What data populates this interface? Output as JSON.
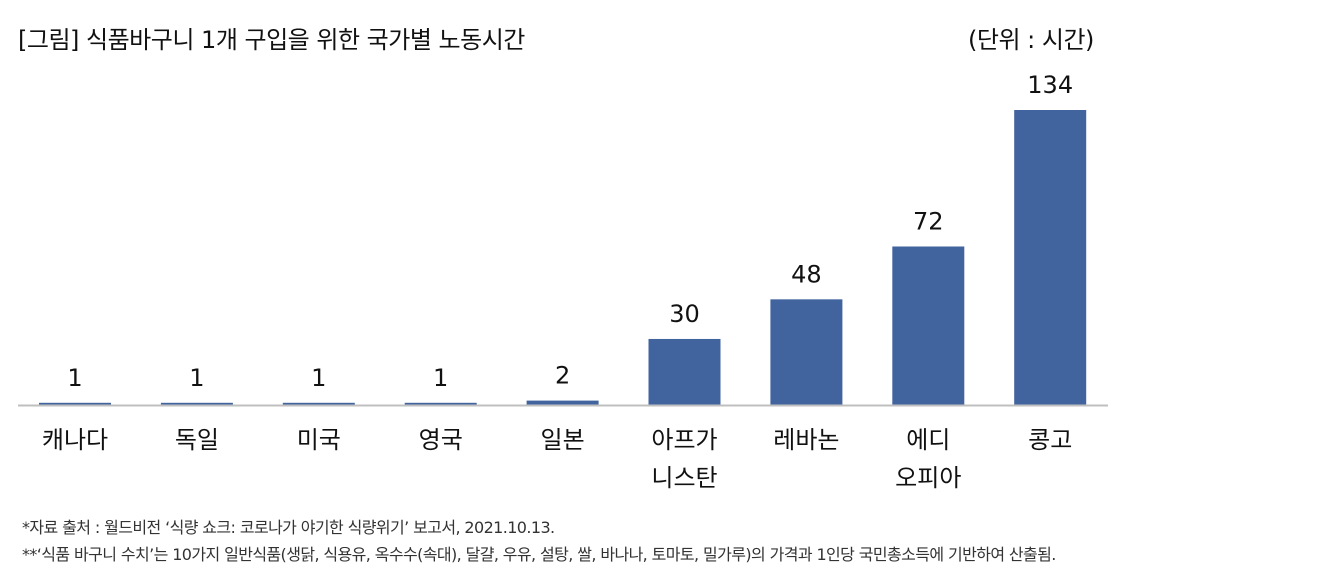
{
  "chart_data": {
    "type": "bar",
    "title": "[그림] 식품바구니 1개 구입을 위한 국가별 노동시간",
    "unit_label": "(단위 : 시간)",
    "categories": [
      [
        "캐나다"
      ],
      [
        "독일"
      ],
      [
        "미국"
      ],
      [
        "영국"
      ],
      [
        "일본"
      ],
      [
        "아프가",
        "니스탄"
      ],
      [
        "레바논"
      ],
      [
        "에디",
        "오피아"
      ],
      [
        "콩고"
      ]
    ],
    "values": [
      1,
      1,
      1,
      1,
      2,
      30,
      48,
      72,
      134
    ],
    "ylim": [
      0,
      134
    ],
    "bar_color": "#41649f",
    "axis_color": "#bfbfbf",
    "grid": false
  },
  "notes": [
    "*자료 출처 : 월드비전 ‘식량 쇼크: 코로나가 야기한 식량위기’ 보고서, 2021.10.13.",
    "**‘식품 바구니 수치’는 10가지 일반식품(생닭, 식용유, 옥수수(속대), 달걀, 우유, 설탕, 쌀, 바나나, 토마토, 밀가루)의 가격과 1인당 국민총소득에 기반하여 산출됨."
  ]
}
